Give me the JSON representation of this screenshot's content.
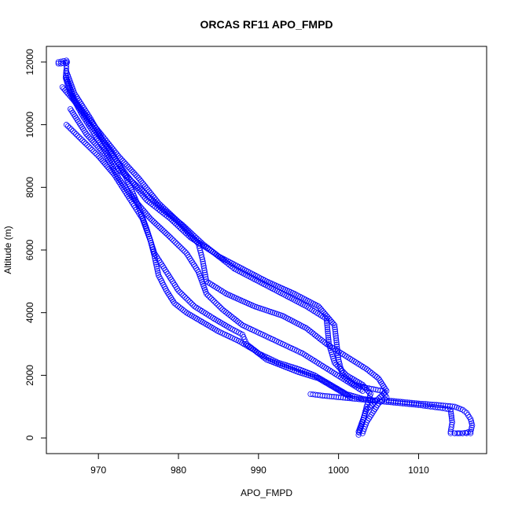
{
  "chart_data": {
    "type": "scatter",
    "title": "ORCAS RF11 APO_FMPD",
    "xlabel": "APO_FMPD",
    "ylabel": "Altitude (m)",
    "xlim": [
      963.5,
      1018.5
    ],
    "ylim": [
      -500,
      12500
    ],
    "x_ticks": [
      970,
      980,
      990,
      1000,
      1010
    ],
    "x_tick_labels": [
      "970",
      "980",
      "990",
      "1000",
      "1010"
    ],
    "y_ticks": [
      0,
      2000,
      4000,
      6000,
      8000,
      10000,
      12000
    ],
    "y_tick_labels": [
      "0",
      "2000",
      "4000",
      "6000",
      "8000",
      "10000",
      "12000"
    ],
    "grid": false,
    "marker": "open-circle",
    "point_color": "#0000ff",
    "series": [
      {
        "x": [
          965.0,
          966.0,
          966.0,
          965.9,
          966.5,
          968.0,
          970.0,
          972.0,
          975.0,
          978.0,
          980.5,
          983.0,
          985.0,
          988.0,
          991.0,
          994.5,
          997.5,
          999.5,
          1000.0,
          1000.5,
          1002.0,
          1003.5,
          1005.5,
          1006.0,
          1005.0,
          1003.5,
          1003.0
        ],
        "y": [
          12000,
          12050,
          11800,
          11500,
          11000,
          10300,
          9500,
          8700,
          8000,
          7300,
          6800,
          6200,
          5800,
          5400,
          5000,
          4600,
          4200,
          3600,
          2500,
          2000,
          1700,
          1600,
          1500,
          1300,
          1100,
          500,
          150
        ]
      },
      {
        "x": [
          966.0,
          967.0,
          969.0,
          971.0,
          973.5,
          976.0,
          979.0,
          981.5,
          984.5,
          987.0,
          990.0,
          993.0,
          996.0,
          998.5,
          998.8,
          999.5,
          1001.0,
          1003.0,
          1004.0,
          1003.5,
          1003.0,
          1002.5
        ],
        "y": [
          11700,
          11000,
          10200,
          9300,
          8400,
          7600,
          7000,
          6400,
          5900,
          5400,
          5000,
          4600,
          4200,
          3800,
          3000,
          2400,
          2000,
          1700,
          1400,
          1000,
          500,
          100
        ]
      },
      {
        "x": [
          965.5,
          967.5,
          970.0,
          972.5,
          975.0,
          977.5,
          980.0,
          982.5,
          983.0,
          983.5,
          986.0,
          989.5,
          993.0,
          996.0,
          998.5,
          1001.0,
          1003.5,
          1005.0,
          1006.0,
          1003.5,
          1002.5
        ],
        "y": [
          11200,
          10600,
          9800,
          9000,
          8300,
          7500,
          6900,
          6200,
          5700,
          5000,
          4600,
          4200,
          3900,
          3500,
          3000,
          2600,
          2200,
          1900,
          1500,
          900,
          200
        ]
      },
      {
        "x": [
          966.5,
          968.5,
          971.0,
          972.5,
          974.5,
          976.5,
          979.0,
          981.0,
          982.5,
          983.5,
          985.5,
          988.0,
          990.5,
          993.0,
          995.5,
          998.0,
          1000.5,
          1003.0
        ],
        "y": [
          10500,
          9700,
          9000,
          8300,
          7600,
          7000,
          6400,
          5900,
          5300,
          4600,
          4100,
          3600,
          3300,
          3000,
          2700,
          2300,
          1900,
          1500
        ]
      },
      {
        "x": [
          966.0,
          968.0,
          970.0,
          972.0,
          974.0,
          975.5,
          976.5,
          977.0,
          977.5,
          978.5,
          979.5,
          981.0,
          983.0,
          985.0,
          987.5,
          989.5,
          991.0,
          993.0,
          995.0,
          997.5,
          999.5,
          1001.5
        ],
        "y": [
          10000,
          9500,
          9000,
          8400,
          7600,
          7000,
          6300,
          5800,
          5200,
          4700,
          4300,
          4000,
          3700,
          3400,
          3100,
          2800,
          2500,
          2300,
          2100,
          1900,
          1600,
          1300
        ]
      },
      {
        "x": [
          966.0,
          967.0,
          969.0,
          971.5,
          973.5,
          975.0,
          976.0,
          977.0,
          978.5,
          980.0,
          982.0,
          984.5,
          986.5,
          988.0,
          988.5,
          990.0,
          992.5,
          995.0,
          997.0,
          999.0,
          1001.0,
          1003.0,
          1004.5
        ],
        "y": [
          11500,
          10800,
          10000,
          9200,
          8300,
          7400,
          6700,
          5900,
          5300,
          4700,
          4200,
          3800,
          3500,
          3300,
          3000,
          2700,
          2400,
          2200,
          2000,
          1700,
          1400,
          1250,
          1200
        ]
      },
      {
        "x": [
          996.5,
          998.0,
          1000.0,
          1002.0,
          1004.0,
          1006.0,
          1008.0,
          1010.0,
          1011.5,
          1013.0,
          1014.0,
          1014.2,
          1014.0
        ],
        "y": [
          1400,
          1350,
          1300,
          1250,
          1200,
          1150,
          1100,
          1050,
          1000,
          950,
          900,
          500,
          200
        ]
      },
      {
        "x": [
          1006.0,
          1008.0,
          1010.0,
          1012.5,
          1014.5,
          1015.5,
          1016.0,
          1016.5,
          1016.7,
          1016.5,
          1015.5,
          1014.5
        ],
        "y": [
          1200,
          1150,
          1100,
          1050,
          1000,
          900,
          800,
          600,
          400,
          200,
          150,
          150
        ]
      },
      {
        "x": [
          1014.0,
          1014.5,
          1015.0,
          1015.5,
          1016.0,
          1016.5
        ],
        "y": [
          150,
          150,
          150,
          150,
          150,
          150
        ]
      },
      {
        "x": [
          965.0,
          965.3,
          965.6,
          965.9,
          966.1
        ],
        "y": [
          11950,
          11950,
          11960,
          11980,
          12000
        ]
      }
    ]
  }
}
